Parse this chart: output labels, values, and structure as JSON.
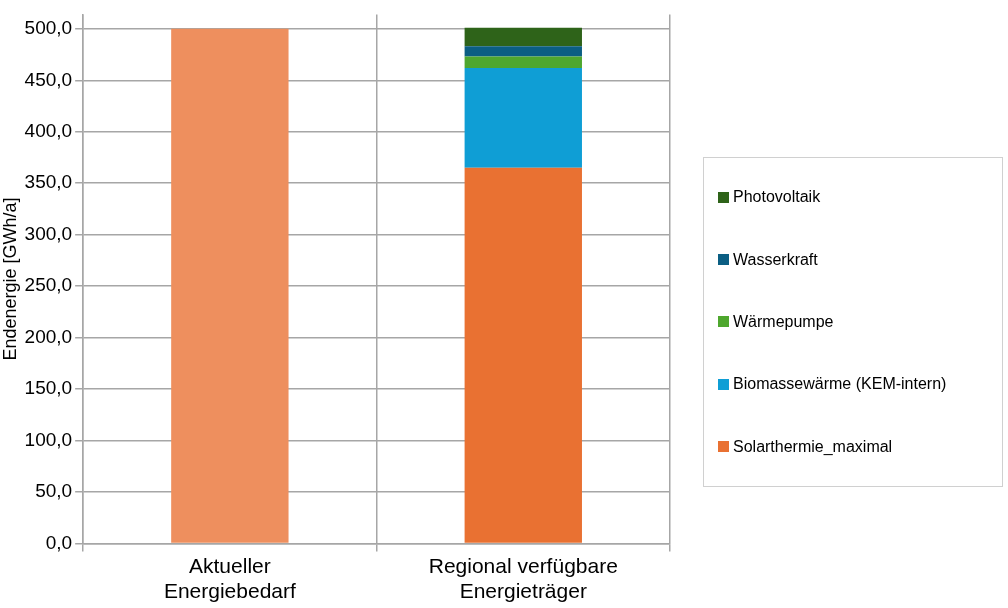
{
  "chart_data": {
    "type": "bar",
    "ylabel": "Endenergie [GWh/a]",
    "categories": [
      "Aktueller Energiebedarf",
      "Regional verfügbare Energieträger"
    ],
    "stacked": true,
    "ylim": [
      0,
      514
    ],
    "yticks": [
      {
        "value": 0,
        "label": "0,0"
      },
      {
        "value": 50,
        "label": "50,0"
      },
      {
        "value": 100,
        "label": "100,0"
      },
      {
        "value": 150,
        "label": "150,0"
      },
      {
        "value": 200,
        "label": "200,0"
      },
      {
        "value": 250,
        "label": "250,0"
      },
      {
        "value": 300,
        "label": "300,0"
      },
      {
        "value": 350,
        "label": "350,0"
      },
      {
        "value": 400,
        "label": "400,0"
      },
      {
        "value": 450,
        "label": "450,0"
      },
      {
        "value": 500,
        "label": "500,0"
      }
    ],
    "series": [
      {
        "name": "Solarthermie_maximal",
        "color": "#e97132",
        "colors": [
          "#ee8f5e",
          "#e97132"
        ],
        "values": [
          500,
          365
        ]
      },
      {
        "name": "Biomassewärme (KEM-intern)",
        "color": "#0f9ed5",
        "values": [
          null,
          97
        ]
      },
      {
        "name": "Wärmepumpe",
        "color": "#4ea72e",
        "values": [
          null,
          11
        ]
      },
      {
        "name": "Wasserkraft",
        "color": "#0b5e83",
        "values": [
          null,
          10
        ]
      },
      {
        "name": "Photovoltaik",
        "color": "#2e6319",
        "values": [
          null,
          18
        ]
      }
    ],
    "grid": true,
    "legend": "right"
  }
}
